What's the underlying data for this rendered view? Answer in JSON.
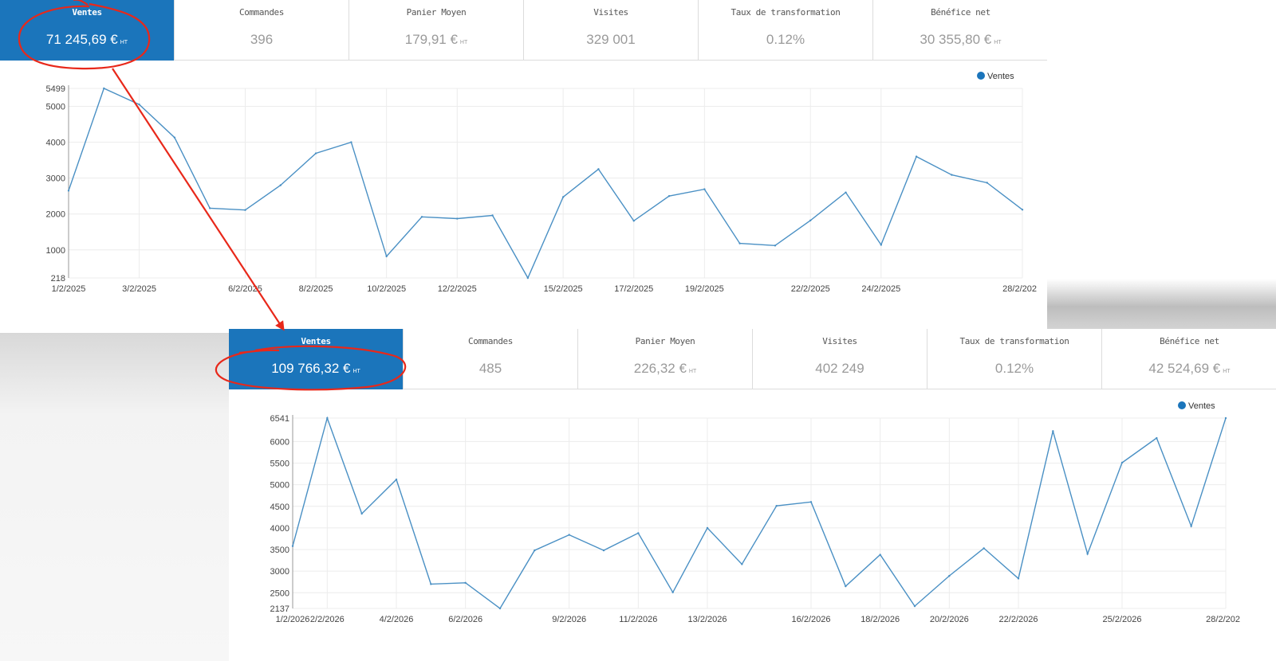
{
  "panels": [
    {
      "kpis": [
        {
          "label": "Ventes",
          "value": "71 245,69 €",
          "unit": "HT",
          "active": true
        },
        {
          "label": "Commandes",
          "value": "396",
          "unit": ""
        },
        {
          "label": "Panier Moyen",
          "value": "179,91 €",
          "unit": "HT"
        },
        {
          "label": "Visites",
          "value": "329 001",
          "unit": ""
        },
        {
          "label": "Taux de transformation",
          "value": "0.12%",
          "unit": ""
        },
        {
          "label": "Bénéfice net",
          "value": "30 355,80 €",
          "unit": "HT"
        }
      ],
      "chart_data": {
        "type": "line",
        "x": [
          "1/2/2025",
          "2/2/2025",
          "3/2/2025",
          "4/2/2025",
          "5/2/2025",
          "6/2/2025",
          "7/2/2025",
          "8/2/2025",
          "9/2/2025",
          "10/2/2025",
          "11/2/2025",
          "12/2/2025",
          "13/2/2025",
          "14/2/2025",
          "15/2/2025",
          "16/2/2025",
          "17/2/2025",
          "18/2/2025",
          "19/2/2025",
          "20/2/2025",
          "21/2/2025",
          "22/2/2025",
          "23/2/2025",
          "24/2/2025",
          "25/2/2025",
          "26/2/2025",
          "27/2/2025",
          "28/2/2025"
        ],
        "x_tick_labels": [
          "1/2/2025",
          "3/2/2025",
          "6/2/2025",
          "8/2/2025",
          "10/2/2025",
          "12/2/2025",
          "15/2/2025",
          "17/2/2025",
          "19/2/2025",
          "22/2/2025",
          "24/2/2025",
          "28/2/202"
        ],
        "y_tick_labels": [
          "218",
          "1000",
          "2000",
          "3000",
          "4000",
          "5000",
          "5499"
        ],
        "ylim": [
          218,
          5499
        ],
        "series": [
          {
            "name": "Ventes",
            "values": [
              2650,
              5499,
              5050,
              4130,
              2160,
              2110,
              2800,
              3690,
              4000,
              820,
              1920,
              1870,
              1960,
              218,
              2470,
              3250,
              1810,
              2500,
              2690,
              1180,
              1120,
              1820,
              2600,
              1140,
              3600,
              3090,
              2870,
              2120
            ]
          }
        ],
        "legend": "top-right",
        "grid": true
      }
    },
    {
      "kpis": [
        {
          "label": "Ventes",
          "value": "109 766,32 €",
          "unit": "HT",
          "active": true
        },
        {
          "label": "Commandes",
          "value": "485",
          "unit": ""
        },
        {
          "label": "Panier Moyen",
          "value": "226,32 €",
          "unit": "HT"
        },
        {
          "label": "Visites",
          "value": "402 249",
          "unit": ""
        },
        {
          "label": "Taux de transformation",
          "value": "0.12%",
          "unit": ""
        },
        {
          "label": "Bénéfice net",
          "value": "42 524,69 €",
          "unit": "HT"
        }
      ],
      "chart_data": {
        "type": "line",
        "x": [
          "1/2/2026",
          "2/2/2026",
          "3/2/2026",
          "4/2/2026",
          "5/2/2026",
          "6/2/2026",
          "7/2/2026",
          "8/2/2026",
          "9/2/2026",
          "10/2/2026",
          "11/2/2026",
          "12/2/2026",
          "13/2/2026",
          "14/2/2026",
          "15/2/2026",
          "16/2/2026",
          "17/2/2026",
          "18/2/2026",
          "19/2/2026",
          "20/2/2026",
          "21/2/2026",
          "22/2/2026",
          "23/2/2026",
          "24/2/2026",
          "25/2/2026",
          "26/2/2026",
          "27/2/2026",
          "28/2/2026"
        ],
        "x_tick_labels": [
          "1/2/2026",
          "2/2/2026",
          "4/2/2026",
          "6/2/2026",
          "9/2/2026",
          "11/2/2026",
          "13/2/2026",
          "16/2/2026",
          "18/2/2026",
          "20/2/2026",
          "22/2/2026",
          "25/2/2026",
          "28/2/202"
        ],
        "y_tick_labels": [
          "2137",
          "2500",
          "3000",
          "3500",
          "4000",
          "4500",
          "5000",
          "5500",
          "6000",
          "6541"
        ],
        "ylim": [
          2137,
          6541
        ],
        "series": [
          {
            "name": "Ventes",
            "values": [
              3580,
              6541,
              4330,
              5120,
              2700,
              2730,
              2137,
              3480,
              3840,
              3480,
              3880,
              2510,
              4000,
              3160,
              4510,
              4600,
              2650,
              3380,
              2190,
              2890,
              3530,
              2830,
              6240,
              3400,
              5510,
              6080,
              4040,
              6541
            ]
          }
        ],
        "legend": "top-right",
        "grid": true
      }
    }
  ],
  "colors": {
    "accent": "#1b75bb",
    "line": "#4a90c4",
    "annotation": "#e8281a"
  }
}
